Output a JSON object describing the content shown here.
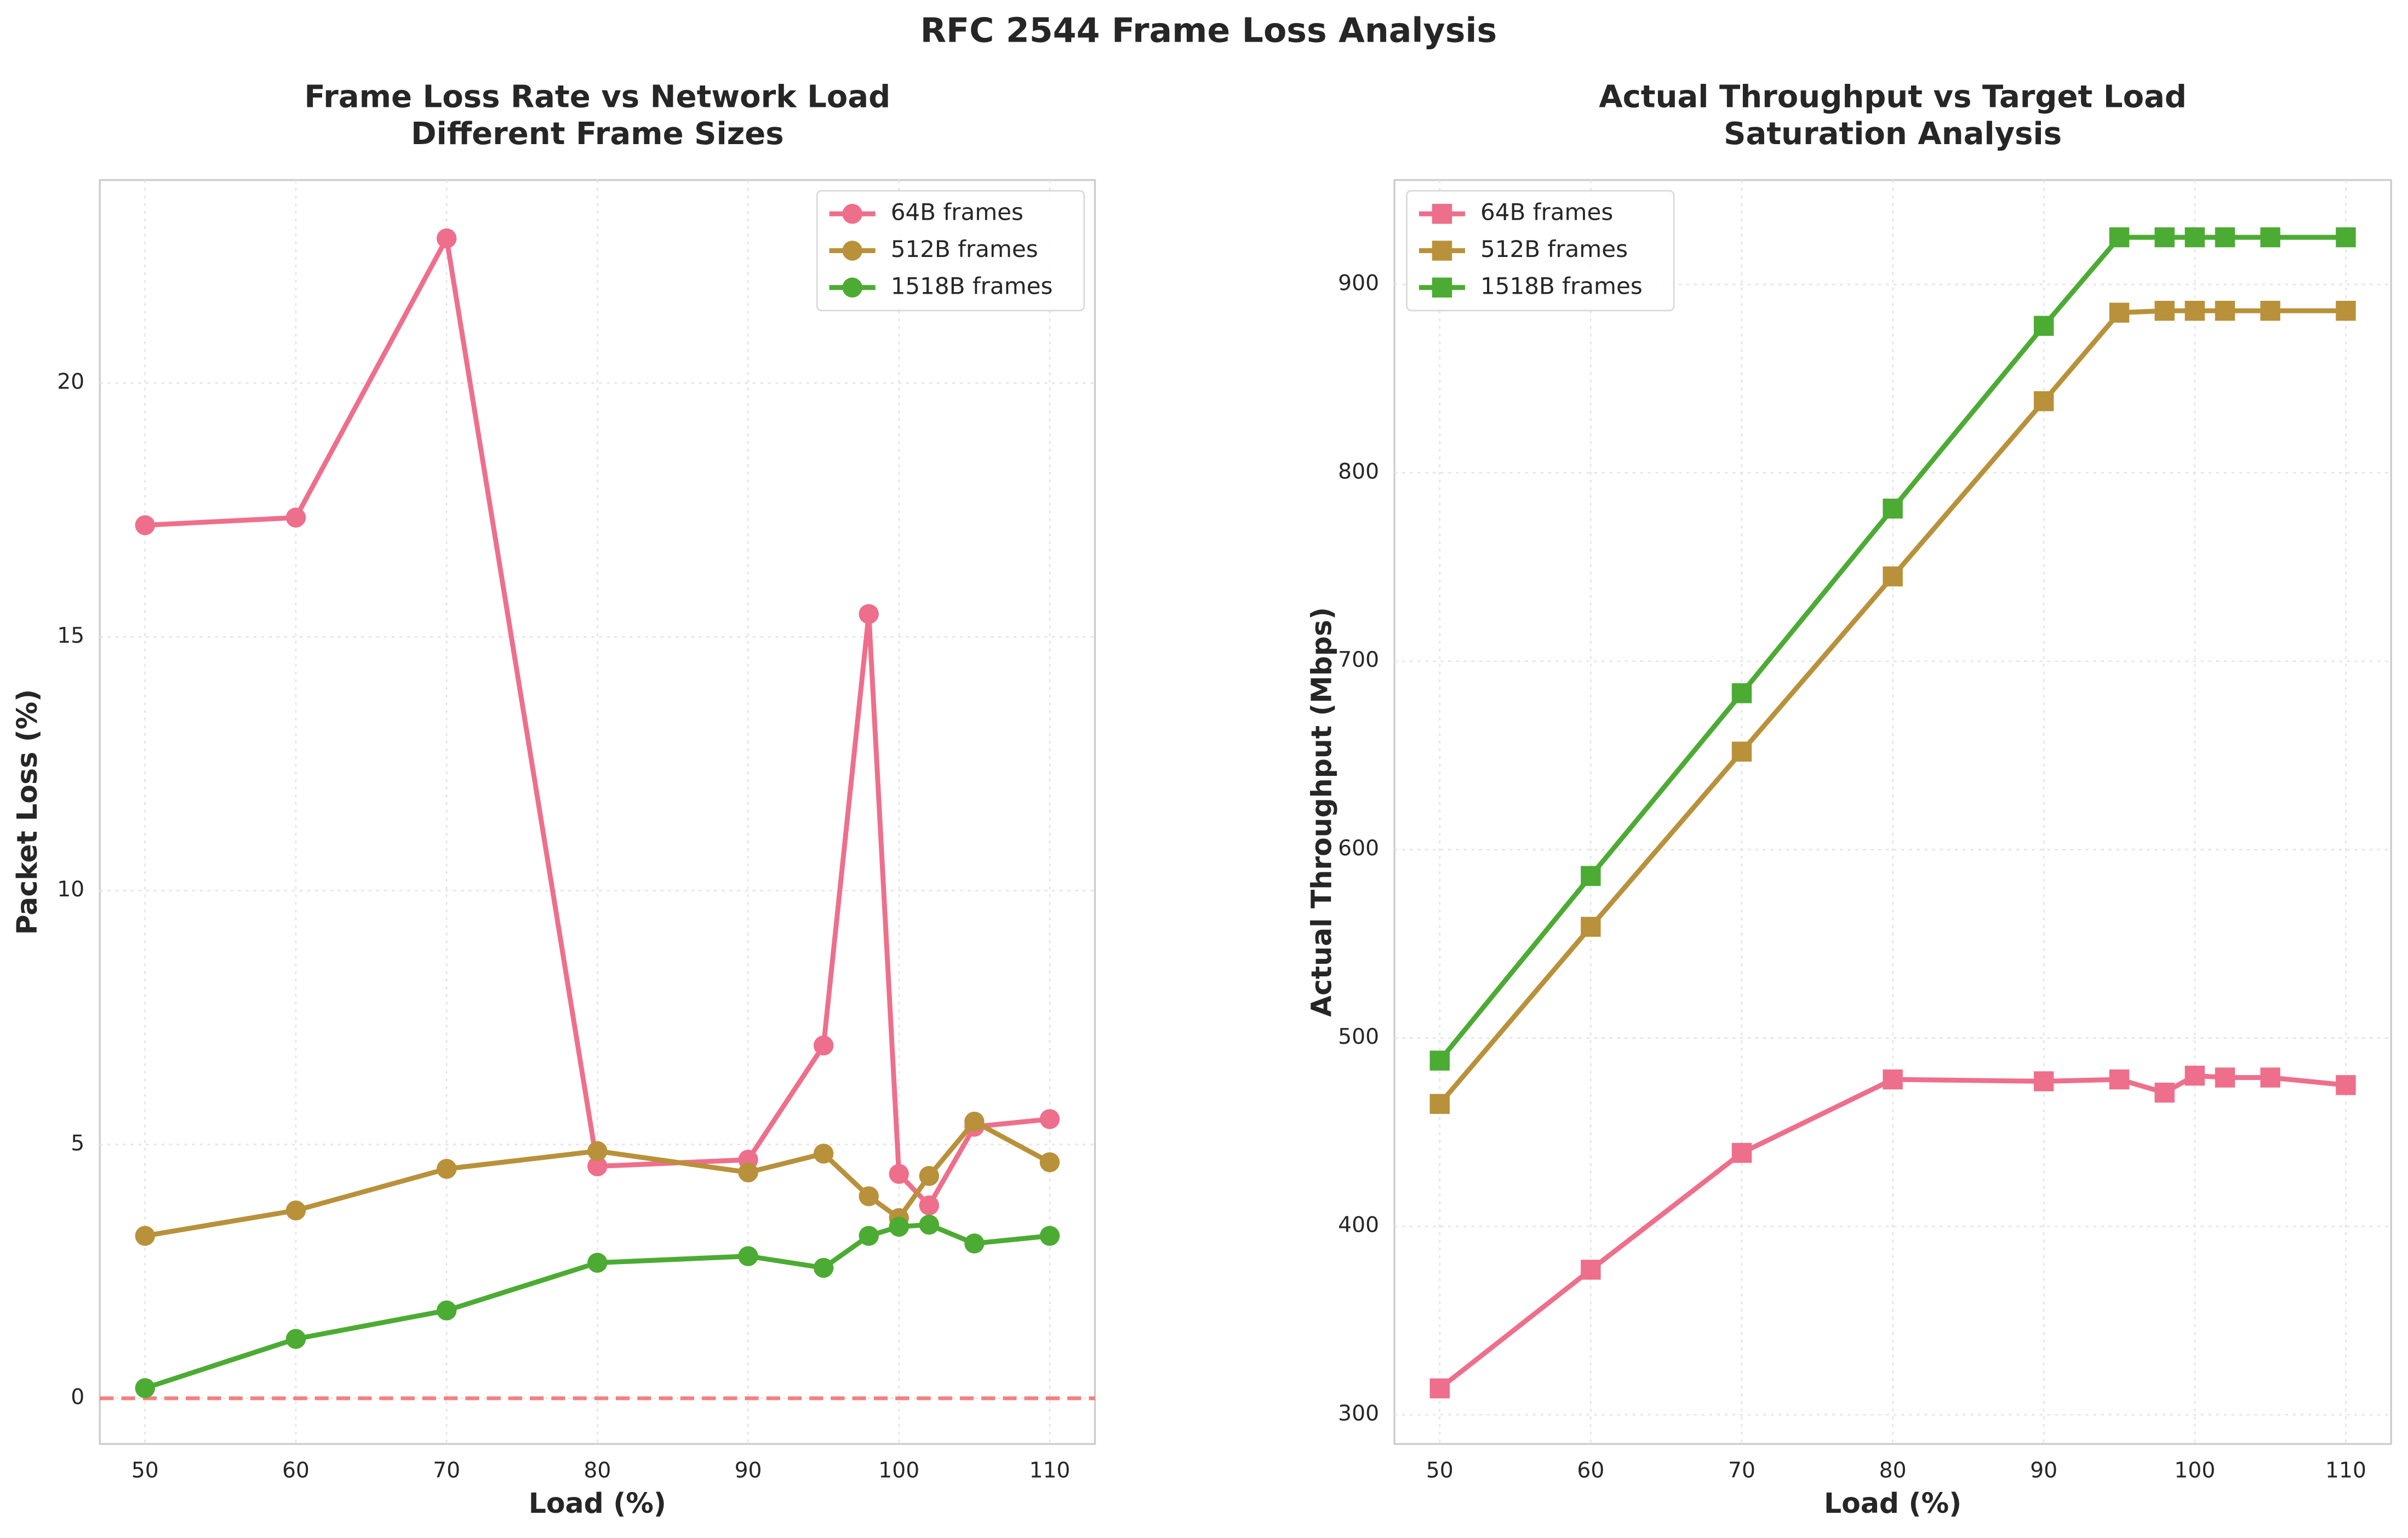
{
  "title": "RFC 2544 Frame Loss Analysis",
  "chart_data": [
    {
      "type": "line",
      "title": "Frame Loss Rate vs Network Load",
      "subtitle": "Different Frame Sizes",
      "x_label": "Load (%)",
      "y_label": "Packet Loss (%)",
      "x": [
        50,
        60,
        70,
        80,
        90,
        95,
        98,
        100,
        102,
        105,
        110
      ],
      "series": [
        {
          "name": "64B frames",
          "color": "#ee6f8b",
          "values": [
            17.2,
            17.35,
            22.85,
            4.57,
            4.7,
            6.95,
            15.45,
            4.42,
            3.8,
            5.35,
            5.5
          ]
        },
        {
          "name": "512B frames",
          "color": "#b8913a",
          "values": [
            3.2,
            3.7,
            4.52,
            4.87,
            4.45,
            4.82,
            3.98,
            3.55,
            4.38,
            5.45,
            4.65
          ]
        },
        {
          "name": "1518B frames",
          "color": "#4cab33",
          "values": [
            0.2,
            1.17,
            1.73,
            2.67,
            2.8,
            2.57,
            3.2,
            3.38,
            3.42,
            3.05,
            3.2
          ]
        }
      ],
      "marker": "circle",
      "hline": {
        "value": 0,
        "color": "#f26d6d"
      },
      "xlim": [
        47,
        113
      ],
      "ylim": [
        -0.9,
        24
      ],
      "xticks": [
        50,
        60,
        70,
        80,
        90,
        100,
        110
      ],
      "yticks": [
        0,
        5,
        10,
        15,
        20
      ],
      "grid": true,
      "legend": "upper right"
    },
    {
      "type": "line",
      "title": "Actual Throughput vs Target Load",
      "subtitle": "Saturation Analysis",
      "x_label": "Load (%)",
      "y_label": "Actual Throughput (Mbps)",
      "x": [
        50,
        60,
        70,
        80,
        90,
        95,
        98,
        100,
        102,
        105,
        110
      ],
      "series": [
        {
          "name": "64B frames",
          "color": "#ee6f8b",
          "values": [
            314,
            377,
            439,
            478,
            477,
            478,
            471,
            480,
            479,
            479,
            475
          ]
        },
        {
          "name": "512B frames",
          "color": "#b8913a",
          "values": [
            465,
            559,
            652,
            745,
            838,
            885,
            886,
            886,
            886,
            886,
            886
          ]
        },
        {
          "name": "1518B frames",
          "color": "#4cab33",
          "values": [
            488,
            586,
            683,
            781,
            878,
            925,
            925,
            925,
            925,
            925,
            925
          ]
        }
      ],
      "marker": "square",
      "xlim": [
        47,
        113
      ],
      "ylim": [
        284.5,
        955.4
      ],
      "xticks": [
        50,
        60,
        70,
        80,
        90,
        100,
        110
      ],
      "yticks": [
        300,
        400,
        500,
        600,
        700,
        800,
        900
      ],
      "grid": true,
      "legend": "upper left"
    }
  ]
}
